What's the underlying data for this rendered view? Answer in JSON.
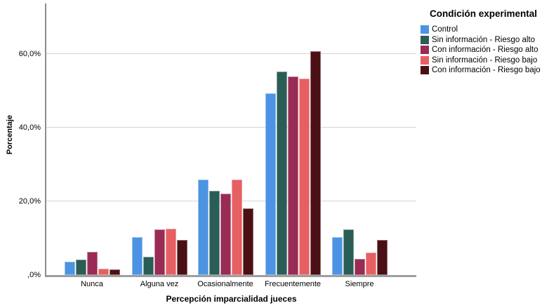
{
  "chart_data": {
    "type": "bar",
    "title": "",
    "xlabel": "Percepción imparcialidad jueces",
    "ylabel": "Porcentaje",
    "legend_title": "Condición experimental",
    "legend_position": "top-right",
    "grid": true,
    "ylim": [
      0,
      73.6
    ],
    "categories": [
      "Nunca",
      "Alguna vez",
      "Ocasionalmente",
      "Frecuentemente",
      "Siempre"
    ],
    "series": [
      {
        "name": "Control",
        "color": "#4C93E3",
        "values": [
          3.7,
          10.2,
          25.9,
          49.3,
          10.2
        ]
      },
      {
        "name": "Sin información - Riesgo alto",
        "color": "#2A5D55",
        "values": [
          4.1,
          4.9,
          22.8,
          55.2,
          12.3
        ]
      },
      {
        "name": "Con información - Riesgo alto",
        "color": "#992B55",
        "values": [
          6.2,
          12.4,
          22.1,
          53.9,
          4.4
        ]
      },
      {
        "name": "Sin información - Riesgo bajo",
        "color": "#E65F63",
        "values": [
          1.7,
          12.6,
          25.8,
          53.3,
          6.1
        ]
      },
      {
        "name": "Con información - Riesgo bajo",
        "color": "#4A1013",
        "values": [
          1.6,
          9.5,
          18.0,
          60.6,
          9.6
        ]
      }
    ],
    "y_ticks": [
      {
        "value": 0,
        "label": ",0%"
      },
      {
        "value": 20,
        "label": "20,0%"
      },
      {
        "value": 40,
        "label": "40,0%"
      },
      {
        "value": 60,
        "label": "60,0%"
      }
    ],
    "gridline_values": [
      20,
      40,
      60
    ]
  },
  "colors": {
    "axis_line": "#8d8d8d",
    "baseline": "#9e9e9e",
    "gridline": "#d6d6d6",
    "background": "#ffffff"
  }
}
